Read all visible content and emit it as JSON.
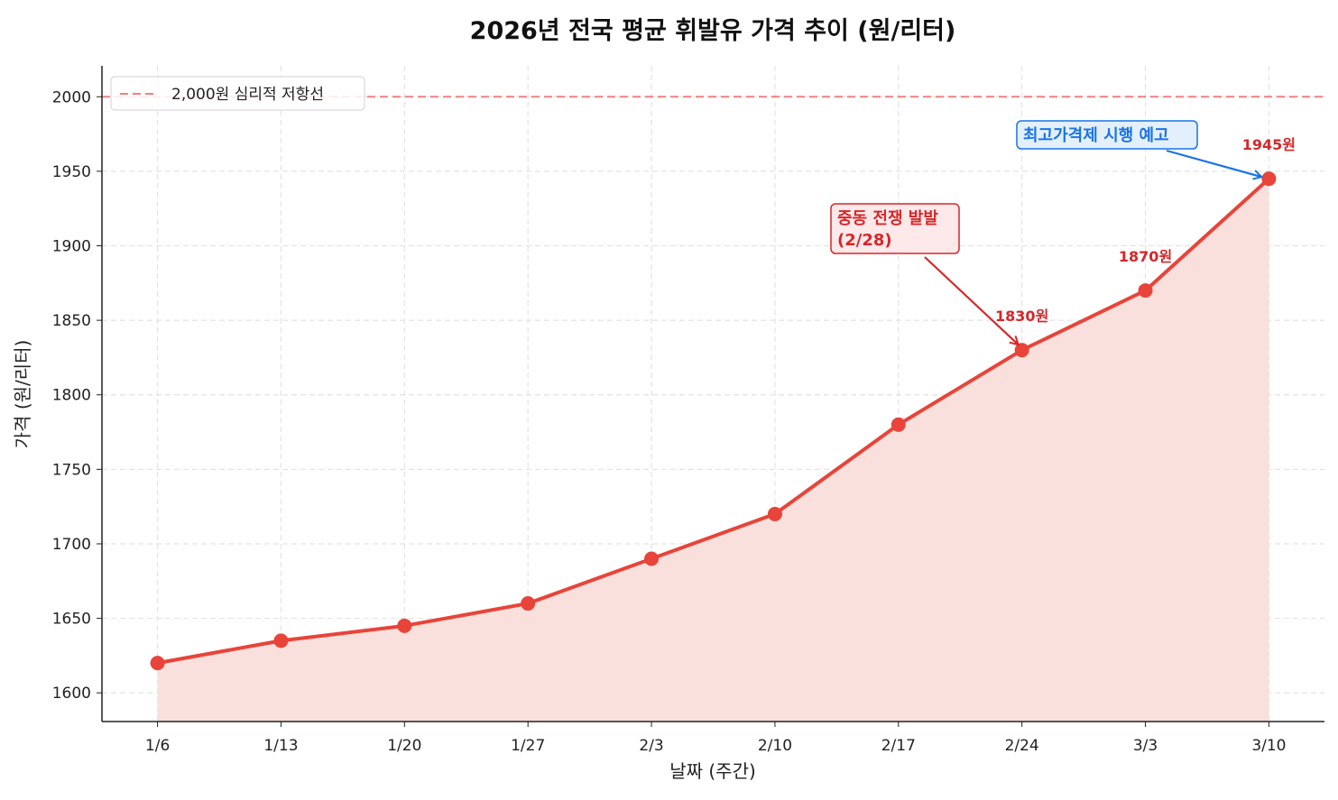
{
  "chart_data": {
    "type": "line",
    "title": "2026년 전국 평균 휘발유 가격 추이 (원/리터)",
    "xlabel": "날짜 (주간)",
    "ylabel": "가격 (원/리터)",
    "categories": [
      "1/6",
      "1/13",
      "1/20",
      "1/27",
      "2/3",
      "2/10",
      "2/17",
      "2/24",
      "3/3",
      "3/10"
    ],
    "series": [
      {
        "values": [
          1620,
          1635,
          1645,
          1660,
          1690,
          1720,
          1780,
          1830,
          1870,
          1945
        ],
        "color": "#e8443a",
        "fill": "#f9e0dc"
      }
    ],
    "ylim": [
      1580.75,
      2020.75
    ],
    "yticks": [
      1600,
      1650,
      1700,
      1750,
      1800,
      1850,
      1900,
      1950,
      2000
    ],
    "grid": true,
    "reference_line": {
      "value": 2000,
      "label": "2,000원 심리적 저항선",
      "color": "#f08080",
      "style": "dashed"
    },
    "legend": {
      "placement": "top-left",
      "entries": [
        "2,000원 심리적 저항선"
      ]
    },
    "data_labels": [
      {
        "category": "2/24",
        "text": "1830원"
      },
      {
        "category": "3/3",
        "text": "1870원"
      },
      {
        "category": "3/10",
        "text": "1945원"
      }
    ],
    "annotations": [
      {
        "text_lines": [
          "중동 전쟁 발발",
          "(2/28)"
        ],
        "target_category": "2/24",
        "color": "#d62728",
        "bg": "#fde8ea"
      },
      {
        "text_lines": [
          "최고가격제 시행 예고"
        ],
        "target_category": "3/10",
        "color": "#1a73e8",
        "bg": "#e3f0fc"
      }
    ]
  }
}
